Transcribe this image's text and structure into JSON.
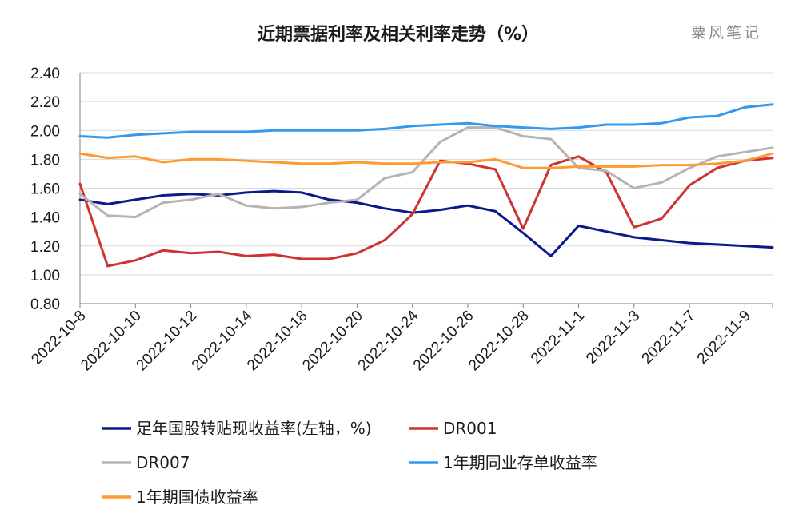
{
  "chart_data": {
    "type": "line",
    "title": "近期票据利率及相关利率走势（%）",
    "watermark": "粟风笔记",
    "ylim": [
      0.8,
      2.4
    ],
    "yticks": [
      "2.40",
      "2.20",
      "2.00",
      "1.80",
      "1.60",
      "1.40",
      "1.20",
      "1.00",
      "0.80"
    ],
    "x": [
      "2022-10-8",
      "2022-10-9",
      "2022-10-10",
      "2022-10-11",
      "2022-10-12",
      "2022-10-13",
      "2022-10-14",
      "2022-10-17",
      "2022-10-18",
      "2022-10-19",
      "2022-10-20",
      "2022-10-21",
      "2022-10-24",
      "2022-10-25",
      "2022-10-26",
      "2022-10-27",
      "2022-10-28",
      "2022-10-31",
      "2022-11-1",
      "2022-11-2",
      "2022-11-3",
      "2022-11-4",
      "2022-11-7",
      "2022-11-8",
      "2022-11-9",
      "2022-11-10"
    ],
    "xtick_labels": [
      "2022-10-8",
      "2022-10-10",
      "2022-10-12",
      "2022-10-14",
      "2022-10-18",
      "2022-10-20",
      "2022-10-24",
      "2022-10-26",
      "2022-10-28",
      "2022-11-1",
      "2022-11-3",
      "2022-11-7",
      "2022-11-9"
    ],
    "series": [
      {
        "name": "足年国股转贴现收益率(左轴，%)",
        "color": "#0a1a8c",
        "values": [
          1.52,
          1.49,
          1.52,
          1.55,
          1.56,
          1.55,
          1.57,
          1.58,
          1.57,
          1.52,
          1.5,
          1.46,
          1.43,
          1.45,
          1.48,
          1.44,
          1.29,
          1.13,
          1.34,
          1.3,
          1.26,
          1.24,
          1.22,
          1.21,
          1.2,
          1.19
        ]
      },
      {
        "name": "DR001",
        "color": "#cc3333",
        "values": [
          1.63,
          1.06,
          1.1,
          1.17,
          1.15,
          1.16,
          1.13,
          1.14,
          1.11,
          1.11,
          1.15,
          1.24,
          1.42,
          1.79,
          1.77,
          1.73,
          1.32,
          1.76,
          1.82,
          1.71,
          1.33,
          1.39,
          1.62,
          1.74,
          1.79,
          1.81
        ]
      },
      {
        "name": "DR007",
        "color": "#b4b4b4",
        "values": [
          1.56,
          1.41,
          1.4,
          1.5,
          1.52,
          1.56,
          1.48,
          1.46,
          1.47,
          1.5,
          1.52,
          1.67,
          1.71,
          1.92,
          2.02,
          2.02,
          1.96,
          1.94,
          1.74,
          1.72,
          1.6,
          1.64,
          1.74,
          1.82,
          1.85,
          1.88
        ]
      },
      {
        "name": "1年期同业存单收益率",
        "color": "#3399ee",
        "values": [
          1.96,
          1.95,
          1.97,
          1.98,
          1.99,
          1.99,
          1.99,
          2.0,
          2.0,
          2.0,
          2.0,
          2.01,
          2.03,
          2.04,
          2.05,
          2.03,
          2.02,
          2.01,
          2.02,
          2.04,
          2.04,
          2.05,
          2.09,
          2.1,
          2.16,
          2.18
        ]
      },
      {
        "name": "1年期国债收益率",
        "color": "#ff9933",
        "values": [
          1.84,
          1.81,
          1.82,
          1.78,
          1.8,
          1.8,
          1.79,
          1.78,
          1.77,
          1.77,
          1.78,
          1.77,
          1.77,
          1.78,
          1.78,
          1.8,
          1.74,
          1.74,
          1.75,
          1.75,
          1.75,
          1.76,
          1.76,
          1.77,
          1.79,
          1.84
        ]
      }
    ],
    "legend": [
      "足年国股转贴现收益率(左轴，%)",
      "DR001",
      "DR007",
      "1年期同业存单收益率",
      "1年期国债收益率"
    ]
  }
}
